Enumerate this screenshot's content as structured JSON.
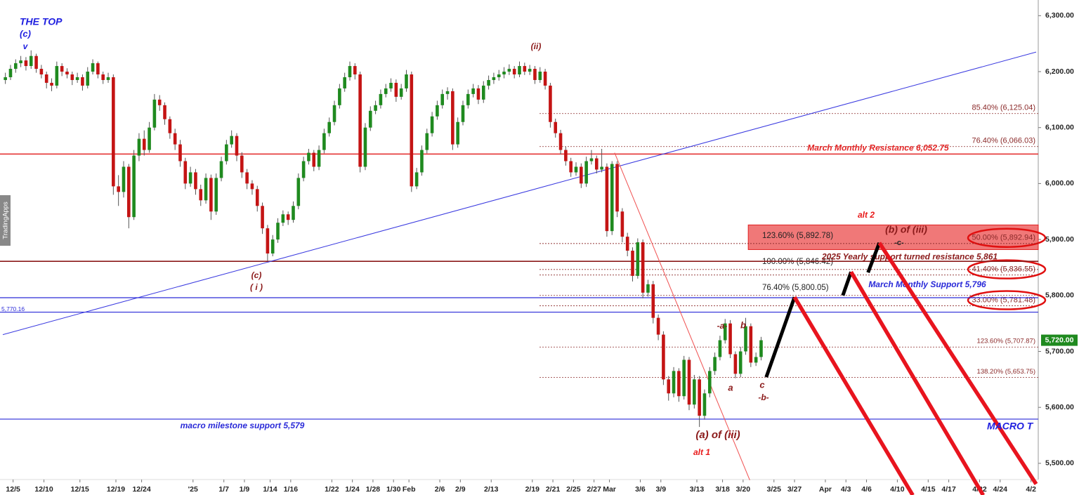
{
  "chart_data": {
    "type": "candlestick",
    "up_color": "#1f8a1f",
    "down_color": "#c41414",
    "xlim": [
      0,
      201
    ],
    "ylim": [
      5471,
      6328
    ],
    "yticks": [
      {
        "value": 5500,
        "label": "5,500.00"
      },
      {
        "value": 5600,
        "label": "5,600.00"
      },
      {
        "value": 5700,
        "label": "5,700.00"
      },
      {
        "value": 5800,
        "label": "5,800.00"
      },
      {
        "value": 5900,
        "label": "5,900.00"
      },
      {
        "value": 6000,
        "label": "6,000.00"
      },
      {
        "value": 6100,
        "label": "6,100.00"
      },
      {
        "value": 6200,
        "label": "6,200.00"
      },
      {
        "value": 6300,
        "label": "6,300.00"
      }
    ],
    "xticks": [
      {
        "value": 2,
        "label": "12/5"
      },
      {
        "value": 8,
        "label": "12/10"
      },
      {
        "value": 15,
        "label": "12/15"
      },
      {
        "value": 22,
        "label": "12/19"
      },
      {
        "value": 27,
        "label": "12/24"
      },
      {
        "value": 37,
        "label": "'25"
      },
      {
        "value": 43,
        "label": "1/7"
      },
      {
        "value": 47,
        "label": "1/9"
      },
      {
        "value": 52,
        "label": "1/14"
      },
      {
        "value": 56,
        "label": "1/16"
      },
      {
        "value": 64,
        "label": "1/22"
      },
      {
        "value": 68,
        "label": "1/24"
      },
      {
        "value": 72,
        "label": "1/28"
      },
      {
        "value": 76,
        "label": "1/30"
      },
      {
        "value": 79,
        "label": "Feb"
      },
      {
        "value": 85,
        "label": "2/6"
      },
      {
        "value": 89,
        "label": "2/9"
      },
      {
        "value": 95,
        "label": "2/13"
      },
      {
        "value": 103,
        "label": "2/19"
      },
      {
        "value": 107,
        "label": "2/21"
      },
      {
        "value": 111,
        "label": "2/25"
      },
      {
        "value": 115,
        "label": "2/27"
      },
      {
        "value": 118,
        "label": "Mar"
      },
      {
        "value": 124,
        "label": "3/6"
      },
      {
        "value": 128,
        "label": "3/9"
      },
      {
        "value": 135,
        "label": "3/13"
      },
      {
        "value": 140,
        "label": "3/18"
      },
      {
        "value": 144,
        "label": "3/20"
      },
      {
        "value": 150,
        "label": "3/25"
      },
      {
        "value": 154,
        "label": "3/27"
      },
      {
        "value": 160,
        "label": "Apr"
      },
      {
        "value": 164,
        "label": "4/3"
      },
      {
        "value": 168,
        "label": "4/6"
      },
      {
        "value": 174,
        "label": "4/10"
      },
      {
        "value": 180,
        "label": "4/15"
      },
      {
        "value": 184,
        "label": "4/17"
      },
      {
        "value": 190,
        "label": "4/22"
      },
      {
        "value": 194,
        "label": "4/24"
      },
      {
        "value": 200,
        "label": "4/2"
      }
    ],
    "candles": [
      [
        6185,
        6198,
        6178,
        6190
      ],
      [
        6190,
        6212,
        6185,
        6205
      ],
      [
        6205,
        6222,
        6198,
        6215
      ],
      [
        6215,
        6228,
        6208,
        6220
      ],
      [
        6220,
        6226,
        6202,
        6210
      ],
      [
        6210,
        6238,
        6205,
        6228
      ],
      [
        6228,
        6232,
        6198,
        6205
      ],
      [
        6205,
        6212,
        6188,
        6195
      ],
      [
        6195,
        6200,
        6170,
        6180
      ],
      [
        6180,
        6188,
        6165,
        6175
      ],
      [
        6175,
        6218,
        6170,
        6210
      ],
      [
        6210,
        6215,
        6192,
        6200
      ],
      [
        6200,
        6206,
        6188,
        6195
      ],
      [
        6195,
        6200,
        6176,
        6185
      ],
      [
        6185,
        6198,
        6180,
        6190
      ],
      [
        6190,
        6195,
        6166,
        6175
      ],
      [
        6175,
        6208,
        6170,
        6200
      ],
      [
        6200,
        6222,
        6195,
        6215
      ],
      [
        6215,
        6218,
        6188,
        6195
      ],
      [
        6195,
        6200,
        6178,
        6185
      ],
      [
        6185,
        6198,
        6180,
        6190
      ],
      [
        6190,
        6195,
        5980,
        5995
      ],
      [
        5995,
        6015,
        5960,
        5985
      ],
      [
        5985,
        6040,
        5975,
        6030
      ],
      [
        6030,
        6035,
        5920,
        5940
      ],
      [
        5940,
        6060,
        5935,
        6050
      ],
      [
        6050,
        6090,
        6040,
        6080
      ],
      [
        6080,
        6095,
        6050,
        6060
      ],
      [
        6060,
        6110,
        6055,
        6100
      ],
      [
        6100,
        6160,
        6095,
        6150
      ],
      [
        6150,
        6158,
        6130,
        6140
      ],
      [
        6140,
        6145,
        6105,
        6115
      ],
      [
        6115,
        6120,
        6080,
        6090
      ],
      [
        6090,
        6098,
        6060,
        6070
      ],
      [
        6070,
        6078,
        6030,
        6040
      ],
      [
        6040,
        6046,
        5990,
        6000
      ],
      [
        6000,
        6030,
        5994,
        6020
      ],
      [
        6020,
        6026,
        5980,
        5990
      ],
      [
        5990,
        5998,
        5960,
        5970
      ],
      [
        5970,
        6018,
        5964,
        6010
      ],
      [
        6010,
        6016,
        5935,
        5950
      ],
      [
        5950,
        6018,
        5944,
        6010
      ],
      [
        6010,
        6048,
        6004,
        6040
      ],
      [
        6040,
        6078,
        6034,
        6070
      ],
      [
        6070,
        6095,
        6064,
        6085
      ],
      [
        6085,
        6090,
        6040,
        6050
      ],
      [
        6050,
        6056,
        6010,
        6020
      ],
      [
        6020,
        6026,
        5990,
        6000
      ],
      [
        6000,
        6006,
        5980,
        5990
      ],
      [
        5990,
        5996,
        5950,
        5960
      ],
      [
        5960,
        5966,
        5910,
        5920
      ],
      [
        5920,
        5926,
        5862,
        5875
      ],
      [
        5875,
        5908,
        5870,
        5900
      ],
      [
        5900,
        5938,
        5894,
        5930
      ],
      [
        5930,
        5952,
        5924,
        5945
      ],
      [
        5945,
        5950,
        5926,
        5935
      ],
      [
        5935,
        5968,
        5930,
        5960
      ],
      [
        5960,
        6018,
        5954,
        6010
      ],
      [
        6010,
        6048,
        6004,
        6040
      ],
      [
        6040,
        6062,
        6034,
        6055
      ],
      [
        6055,
        6060,
        6022,
        6030
      ],
      [
        6030,
        6068,
        6024,
        6060
      ],
      [
        6060,
        6098,
        6054,
        6090
      ],
      [
        6090,
        6118,
        6084,
        6110
      ],
      [
        6110,
        6148,
        6104,
        6140
      ],
      [
        6140,
        6178,
        6134,
        6170
      ],
      [
        6170,
        6198,
        6164,
        6190
      ],
      [
        6190,
        6218,
        6184,
        6210
      ],
      [
        6210,
        6215,
        6186,
        6195
      ],
      [
        6195,
        6200,
        6020,
        6030
      ],
      [
        6030,
        6108,
        6024,
        6100
      ],
      [
        6100,
        6138,
        6094,
        6130
      ],
      [
        6130,
        6148,
        6124,
        6140
      ],
      [
        6140,
        6168,
        6134,
        6160
      ],
      [
        6160,
        6178,
        6154,
        6170
      ],
      [
        6170,
        6188,
        6164,
        6180
      ],
      [
        6180,
        6186,
        6146,
        6155
      ],
      [
        6155,
        6178,
        6150,
        6170
      ],
      [
        6170,
        6203,
        6164,
        6195
      ],
      [
        6195,
        6200,
        5985,
        5995
      ],
      [
        5995,
        6028,
        5990,
        6020
      ],
      [
        6020,
        6068,
        6014,
        6060
      ],
      [
        6060,
        6098,
        6054,
        6090
      ],
      [
        6090,
        6128,
        6084,
        6120
      ],
      [
        6120,
        6148,
        6114,
        6140
      ],
      [
        6140,
        6168,
        6134,
        6160
      ],
      [
        6160,
        6172,
        6150,
        6165
      ],
      [
        6165,
        6170,
        6060,
        6070
      ],
      [
        6070,
        6118,
        6064,
        6110
      ],
      [
        6110,
        6148,
        6104,
        6140
      ],
      [
        6140,
        6168,
        6134,
        6160
      ],
      [
        6160,
        6178,
        6154,
        6170
      ],
      [
        6170,
        6176,
        6142,
        6150
      ],
      [
        6150,
        6183,
        6144,
        6175
      ],
      [
        6175,
        6193,
        6168,
        6185
      ],
      [
        6185,
        6198,
        6178,
        6190
      ],
      [
        6190,
        6203,
        6184,
        6195
      ],
      [
        6195,
        6208,
        6188,
        6200
      ],
      [
        6200,
        6213,
        6194,
        6205
      ],
      [
        6205,
        6210,
        6188,
        6195
      ],
      [
        6195,
        6218,
        6190,
        6210
      ],
      [
        6210,
        6216,
        6194,
        6200
      ],
      [
        6200,
        6212,
        6194,
        6205
      ],
      [
        6205,
        6210,
        6178,
        6185
      ],
      [
        6185,
        6208,
        6180,
        6200
      ],
      [
        6200,
        6205,
        6168,
        6175
      ],
      [
        6175,
        6180,
        6100,
        6110
      ],
      [
        6110,
        6116,
        6082,
        6090
      ],
      [
        6090,
        6096,
        6052,
        6060
      ],
      [
        6060,
        6066,
        6032,
        6040
      ],
      [
        6040,
        6046,
        6012,
        6020
      ],
      [
        6020,
        6038,
        6014,
        6030
      ],
      [
        6030,
        6036,
        5992,
        6000
      ],
      [
        6000,
        6048,
        5994,
        6040
      ],
      [
        6040,
        6060,
        6034,
        6045
      ],
      [
        6045,
        6050,
        6018,
        6025
      ],
      [
        6025,
        6062,
        6020,
        6030
      ],
      [
        6030,
        6036,
        5905,
        5915
      ],
      [
        5915,
        6040,
        5908,
        6035
      ],
      [
        6035,
        6040,
        5940,
        5950
      ],
      [
        5950,
        5956,
        5895,
        5905
      ],
      [
        5905,
        5912,
        5870,
        5880
      ],
      [
        5880,
        5886,
        5825,
        5835
      ],
      [
        5835,
        5902,
        5830,
        5895
      ],
      [
        5895,
        5900,
        5795,
        5805
      ],
      [
        5805,
        5828,
        5798,
        5820
      ],
      [
        5820,
        5826,
        5750,
        5760
      ],
      [
        5760,
        5766,
        5720,
        5730
      ],
      [
        5730,
        5736,
        5640,
        5650
      ],
      [
        5650,
        5656,
        5612,
        5625
      ],
      [
        5625,
        5672,
        5618,
        5665
      ],
      [
        5665,
        5670,
        5610,
        5620
      ],
      [
        5620,
        5692,
        5614,
        5685
      ],
      [
        5685,
        5690,
        5595,
        5605
      ],
      [
        5605,
        5658,
        5598,
        5650
      ],
      [
        5650,
        5656,
        5565,
        5585
      ],
      [
        5585,
        5632,
        5578,
        5625
      ],
      [
        5625,
        5672,
        5618,
        5665
      ],
      [
        5665,
        5698,
        5658,
        5690
      ],
      [
        5690,
        5728,
        5684,
        5720
      ],
      [
        5720,
        5758,
        5714,
        5750
      ],
      [
        5750,
        5756,
        5688,
        5695
      ],
      [
        5695,
        5700,
        5652,
        5660
      ],
      [
        5660,
        5708,
        5654,
        5700
      ],
      [
        5700,
        5760,
        5694,
        5745
      ],
      [
        5745,
        5750,
        5672,
        5680
      ],
      [
        5680,
        5698,
        5674,
        5690
      ],
      [
        5690,
        5726,
        5684,
        5720
      ]
    ],
    "levels": [
      {
        "label": "March Monthly Resistance 6,052.75",
        "value": 6052.75,
        "color": "#e32626"
      },
      {
        "label": "2025 Yearly support turned resistance 5,861",
        "value": 5861,
        "color": "#8b1a1a"
      },
      {
        "label": "March Monthly Support 5,796",
        "value": 5796,
        "color": "#2a2ad8"
      },
      {
        "label": "5,770.16",
        "value": 5770.16,
        "color": "#2a2ad8"
      },
      {
        "label": "macro milestone support 5,579",
        "value": 5579,
        "color": "#2a2ad8"
      }
    ],
    "fib_levels": [
      {
        "label": "85.40% (6,125.04)",
        "value": 6125.04
      },
      {
        "label": "76.40% (6,066.03)",
        "value": 6066.03
      },
      {
        "label": "50.00% (5,892.94)",
        "value": 5892.94
      },
      {
        "label": "41.40% (5,836.55)",
        "value": 5836.55
      },
      {
        "label": "33.00% (5,781.48)",
        "value": 5781.48
      },
      {
        "label": "123.60% (5,707.87)",
        "value": 5707.87
      },
      {
        "label": "138.20% (5,653.75)",
        "value": 5653.75
      }
    ],
    "projection_levels": [
      {
        "label": "123.60% (5,892.78)",
        "value": 5892.78
      },
      {
        "label": "100.00% (5,846.42)",
        "value": 5846.42
      },
      {
        "label": "76.40% (5,800.05)",
        "value": 5800.05
      }
    ],
    "zone": {
      "start": 145,
      "low": 5882,
      "high": 5926,
      "color": "#f07878"
    },
    "trendlines": [
      {
        "color": "#3a3ae0",
        "points": [
          [
            0,
            5730
          ],
          [
            201,
            6235
          ]
        ]
      },
      {
        "color": "#f05050",
        "points": [
          [
            119,
            6055
          ],
          [
            145.3,
            5470
          ]
        ]
      }
    ],
    "projections": [
      {
        "color": "#000000",
        "points": [
          [
            148.5,
            5654
          ],
          [
            154,
            5797
          ]
        ]
      },
      {
        "color": "#e8141e",
        "points": [
          [
            154,
            5797
          ],
          [
            177,
            5443
          ]
        ]
      },
      {
        "color": "#000000",
        "points": [
          [
            163.4,
            5800
          ],
          [
            165,
            5842
          ]
        ]
      },
      {
        "color": "#e8141e",
        "points": [
          [
            165,
            5842
          ],
          [
            190.7,
            5443
          ]
        ]
      },
      {
        "color": "#000000",
        "points": [
          [
            168.3,
            5841
          ],
          [
            170.5,
            5894
          ]
        ]
      },
      {
        "color": "#e8141e",
        "points": [
          [
            170.5,
            5894
          ],
          [
            201,
            5463
          ]
        ]
      }
    ],
    "annotations": [
      "THE TOP",
      "(c)",
      "v",
      "(ii)",
      "(c)",
      "( i )",
      "alt 2",
      "(b) of (iii)",
      "-c-",
      "-a-",
      "b",
      "a",
      "c",
      "-b-",
      "(a) of (iii)",
      "alt 1",
      "MACRO T"
    ],
    "watermark": "TradingApps",
    "last_price": {
      "value": 5720,
      "label": "5,720.00",
      "color": "#1f8a1f"
    }
  }
}
